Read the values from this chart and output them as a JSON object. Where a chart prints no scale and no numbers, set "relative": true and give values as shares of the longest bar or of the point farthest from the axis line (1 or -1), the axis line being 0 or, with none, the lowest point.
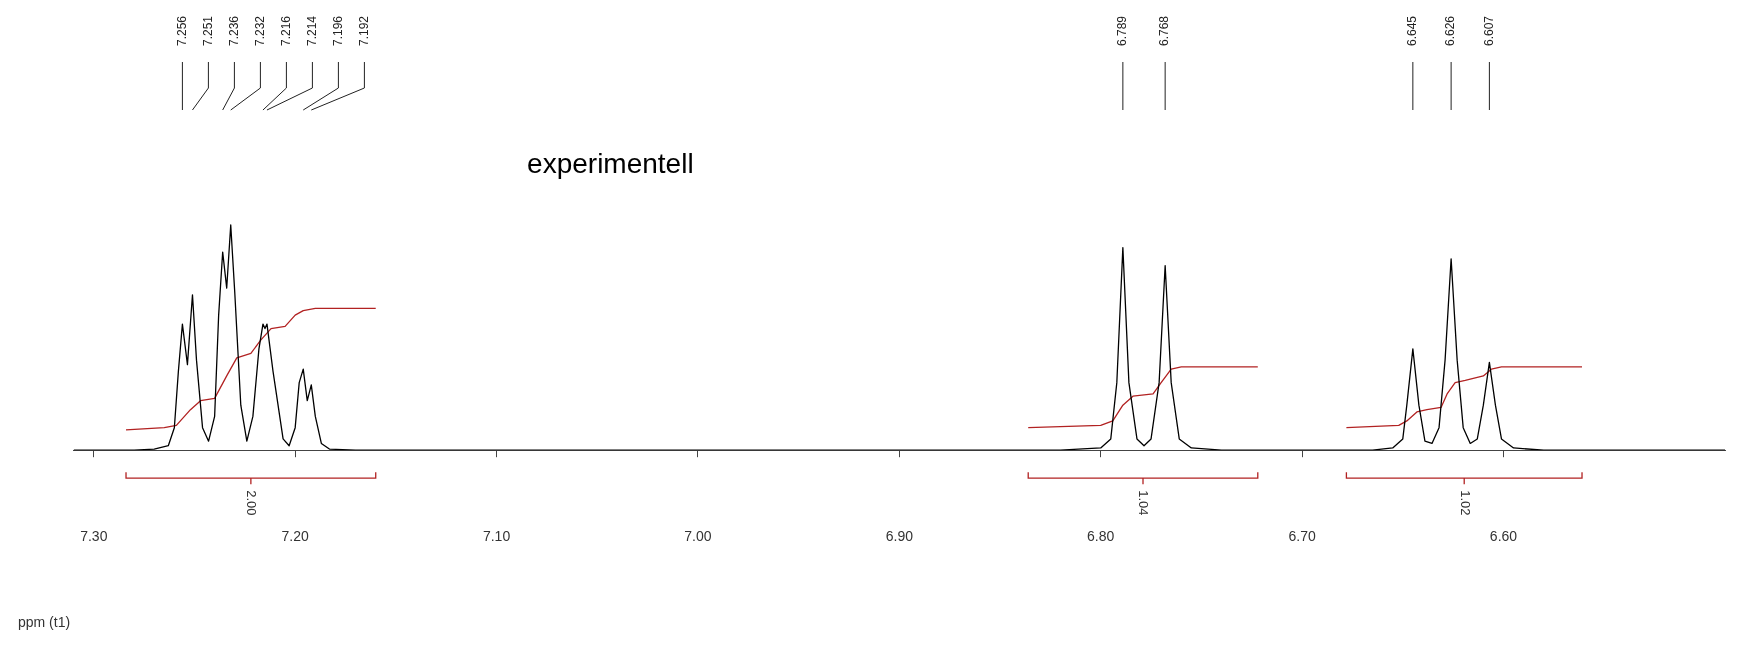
{
  "chart_data": {
    "type": "line",
    "title": "experimentell",
    "xlabel": "ppm (t1)",
    "relative": true,
    "legend": false,
    "grid": false,
    "marker": "none",
    "line_style": "solid",
    "xlim": [
      7.31,
      6.49
    ],
    "xticks": [
      {
        "value": 7.3,
        "label": "7.30"
      },
      {
        "value": 7.2,
        "label": "7.20"
      },
      {
        "value": 7.1,
        "label": "7.10"
      },
      {
        "value": 7.0,
        "label": "7.00"
      },
      {
        "value": 6.9,
        "label": "6.90"
      },
      {
        "value": 6.8,
        "label": "6.80"
      },
      {
        "value": 6.7,
        "label": "6.70"
      },
      {
        "value": 6.6,
        "label": "6.60"
      }
    ],
    "series": [
      {
        "type": "line",
        "color": "#000000",
        "x": [
          7.31,
          7.28,
          7.27,
          7.263,
          7.26,
          7.258,
          7.256,
          7.2535,
          7.251,
          7.249,
          7.246,
          7.243,
          7.24,
          7.238,
          7.236,
          7.234,
          7.232,
          7.23,
          7.227,
          7.224,
          7.221,
          7.218,
          7.216,
          7.215,
          7.214,
          7.211,
          7.206,
          7.203,
          7.2,
          7.198,
          7.196,
          7.194,
          7.192,
          7.19,
          7.187,
          7.183,
          7.17,
          6.95,
          6.82,
          6.8,
          6.795,
          6.792,
          6.789,
          6.786,
          6.782,
          6.7785,
          6.775,
          6.771,
          6.768,
          6.765,
          6.761,
          6.755,
          6.74,
          6.665,
          6.655,
          6.65,
          6.648,
          6.645,
          6.642,
          6.639,
          6.6355,
          6.632,
          6.629,
          6.626,
          6.623,
          6.62,
          6.6165,
          6.613,
          6.61,
          6.607,
          6.604,
          6.601,
          6.595,
          6.58,
          6.49
        ],
        "values": [
          0,
          0,
          0.005,
          0.02,
          0.1,
          0.35,
          0.56,
          0.38,
          0.69,
          0.4,
          0.1,
          0.04,
          0.15,
          0.6,
          0.88,
          0.72,
          1,
          0.7,
          0.2,
          0.04,
          0.15,
          0.45,
          0.56,
          0.54,
          0.56,
          0.35,
          0.05,
          0.02,
          0.1,
          0.3,
          0.36,
          0.22,
          0.29,
          0.15,
          0.03,
          0.005,
          0,
          0,
          0,
          0.01,
          0.05,
          0.3,
          0.9,
          0.3,
          0.05,
          0.02,
          0.05,
          0.3,
          0.82,
          0.3,
          0.05,
          0.01,
          0,
          0,
          0.01,
          0.05,
          0.2,
          0.45,
          0.2,
          0.04,
          0.03,
          0.1,
          0.4,
          0.85,
          0.4,
          0.1,
          0.03,
          0.05,
          0.2,
          0.39,
          0.2,
          0.05,
          0.01,
          0,
          0
        ]
      },
      {
        "type": "line",
        "color": "#b22222",
        "x": [
          7.284,
          7.265,
          7.259,
          7.252,
          7.247,
          7.24,
          7.234,
          7.229,
          7.222,
          7.217,
          7.212,
          7.205,
          7.2,
          7.196,
          7.19,
          7.16
        ],
        "values": [
          0.09,
          0.1,
          0.11,
          0.18,
          0.22,
          0.23,
          0.33,
          0.41,
          0.43,
          0.49,
          0.54,
          0.55,
          0.6,
          0.62,
          0.63,
          0.63
        ]
      },
      {
        "type": "line",
        "color": "#b22222",
        "x": [
          6.836,
          6.8,
          6.794,
          6.789,
          6.784,
          6.774,
          6.77,
          6.765,
          6.76,
          6.722
        ],
        "values": [
          0.1,
          0.11,
          0.13,
          0.2,
          0.24,
          0.25,
          0.3,
          0.36,
          0.37,
          0.37
        ]
      },
      {
        "type": "line",
        "color": "#b22222",
        "x": [
          6.678,
          6.652,
          6.648,
          6.643,
          6.638,
          6.631,
          6.628,
          6.624,
          6.619,
          6.61,
          6.606,
          6.601,
          6.561
        ],
        "values": [
          0.1,
          0.11,
          0.13,
          0.17,
          0.18,
          0.19,
          0.25,
          0.3,
          0.31,
          0.33,
          0.36,
          0.37,
          0.37
        ]
      }
    ],
    "annotations": [
      "7.256",
      "7.251",
      "7.236",
      "7.232",
      "7.216",
      "7.214",
      "7.196",
      "7.192",
      "6.789",
      "6.768",
      "6.645",
      "6.626",
      "6.607",
      "2.00",
      "1.04",
      "1.02"
    ]
  }
}
